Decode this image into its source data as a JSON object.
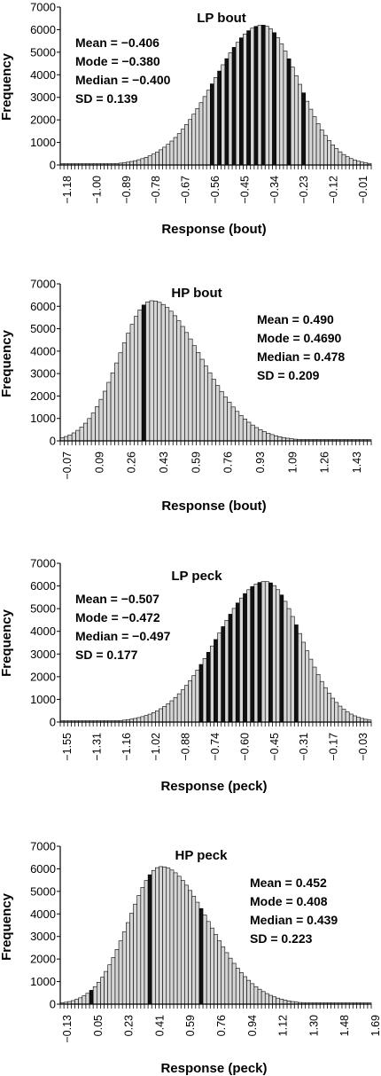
{
  "figure": {
    "panels": 4,
    "layout": "vertical stack"
  },
  "chart_data": [
    {
      "type": "bar",
      "title": "LP bout",
      "xlabel": "Response (bout)",
      "ylabel": "Frequency",
      "ylim": [
        0,
        7000
      ],
      "yticks": [
        0,
        1000,
        2000,
        3000,
        4000,
        5000,
        6000,
        7000
      ],
      "xtick_labels": [
        "−1.18",
        "−1.00",
        "−0.89",
        "−0.78",
        "−0.67",
        "−0.56",
        "−0.45",
        "−0.34",
        "−0.23",
        "−0.12",
        "−0.01"
      ],
      "stats": [
        "Mean = −0.406",
        "Mode = −0.380",
        "Median = −0.400",
        "SD = 0.139"
      ],
      "stats_position": "top-left",
      "distribution": {
        "mode_position": 0.65,
        "sd_left": 0.155,
        "sd_right": 0.115,
        "peak": 6200,
        "tail_side": "left"
      },
      "n_bins": 85,
      "dark_bins": [
        41,
        43,
        45,
        47,
        49,
        51,
        53,
        55,
        58,
        62,
        66
      ]
    },
    {
      "type": "bar",
      "title": "HP bout",
      "xlabel": "Response (bout)",
      "ylabel": "Frequency",
      "ylim": [
        0,
        7000
      ],
      "yticks": [
        0,
        1000,
        2000,
        3000,
        4000,
        5000,
        6000,
        7000
      ],
      "xtick_labels": [
        "−0.07",
        "0.09",
        "0.26",
        "0.43",
        "0.59",
        "0.76",
        "0.93",
        "1.09",
        "1.26",
        "1.43"
      ],
      "stats": [
        "Mean = 0.490",
        "Mode = 0.4690",
        "Median = 0.478",
        "SD = 0.209"
      ],
      "stats_position": "top-right",
      "distribution": {
        "mode_position": 0.295,
        "sd_left": 0.105,
        "sd_right": 0.155,
        "peak": 6250,
        "tail_side": "right"
      },
      "n_bins": 80,
      "dark_bins": [
        21
      ]
    },
    {
      "type": "bar",
      "title": "LP peck",
      "xlabel": "Response (peck)",
      "ylabel": "Frequency",
      "ylim": [
        0,
        7000
      ],
      "yticks": [
        0,
        1000,
        2000,
        3000,
        4000,
        5000,
        6000,
        7000
      ],
      "xtick_labels": [
        "−1.55",
        "−1.31",
        "−1.16",
        "−1.02",
        "−0.88",
        "−0.74",
        "−0.60",
        "−0.45",
        "−0.31",
        "−0.17",
        "−0.03"
      ],
      "stats": [
        "Mean = −0.507",
        "Mode = −0.472",
        "Median = −0.497",
        "SD = 0.177"
      ],
      "stats_position": "top-left",
      "distribution": {
        "mode_position": 0.66,
        "sd_left": 0.155,
        "sd_right": 0.115,
        "peak": 6200,
        "tail_side": "left"
      },
      "n_bins": 85,
      "dark_bins": [
        38,
        40,
        42,
        44,
        46,
        48,
        50,
        52,
        54,
        57,
        60,
        64
      ]
    },
    {
      "type": "bar",
      "title": "HP peck",
      "xlabel": "Response (peck)",
      "ylabel": "Frequency",
      "ylim": [
        0,
        7000
      ],
      "yticks": [
        0,
        1000,
        2000,
        3000,
        4000,
        5000,
        6000,
        7000
      ],
      "xtick_labels": [
        "−0.13",
        "0.05",
        "0.23",
        "0.41",
        "0.59",
        "0.76",
        "0.94",
        "1.12",
        "1.30",
        "1.48",
        "1.69"
      ],
      "stats": [
        "Mean = 0.452",
        "Mode = 0.408",
        "Median = 0.439",
        "SD = 0.223"
      ],
      "stats_position": "top-right",
      "distribution": {
        "mode_position": 0.325,
        "sd_left": 0.105,
        "sd_right": 0.15,
        "peak": 6100,
        "tail_side": "right"
      },
      "n_bins": 85,
      "dark_bins": [
        8,
        24,
        38
      ]
    }
  ]
}
